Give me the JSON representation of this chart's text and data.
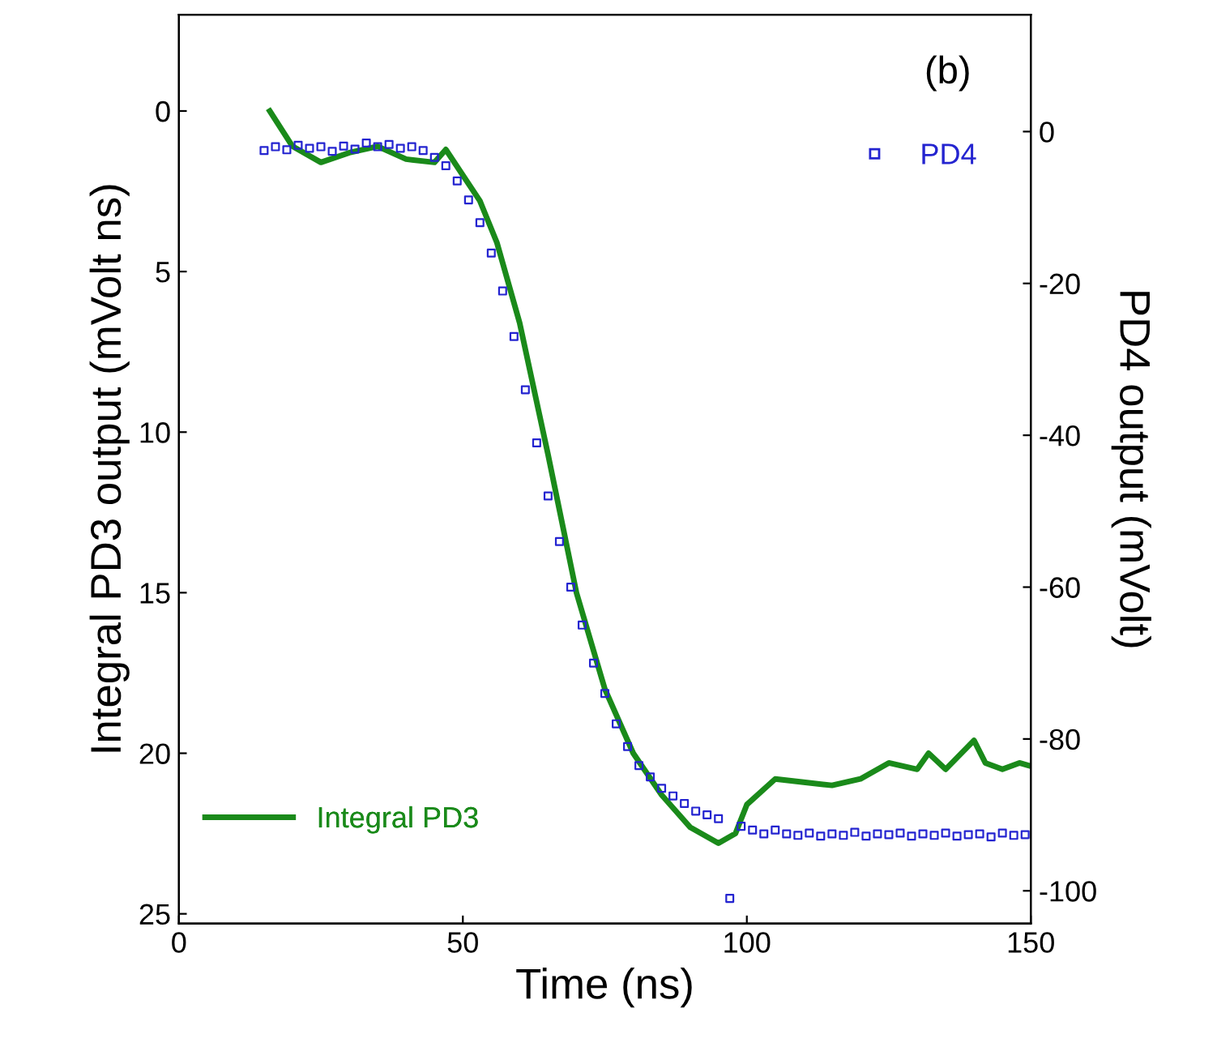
{
  "chart_data": {
    "type": "line",
    "xlabel": "Time (ns)",
    "ylabel": "Integral PD3 output (mVolt ns)",
    "y2label": "PD4 output (mVolt)",
    "xlim": [
      0,
      150
    ],
    "xticks": [
      0,
      50,
      100,
      150
    ],
    "ylim": [
      25.3,
      -3
    ],
    "yticks": [
      0,
      5,
      10,
      15,
      20,
      25
    ],
    "y2lim": [
      -104.3,
      15.4
    ],
    "y2ticks": [
      -100,
      -80,
      -60,
      -40,
      -20,
      0
    ],
    "legend": "right",
    "grid": false,
    "annotations": [
      "(b)"
    ],
    "series": [
      {
        "name": "PD4",
        "type": "scatter",
        "axis": "y2",
        "marker": "square",
        "color": "#2424d0",
        "x": [
          15,
          17,
          19,
          21,
          23,
          25,
          27,
          29,
          31,
          33,
          35,
          37,
          39,
          41,
          43,
          45,
          47,
          49,
          51,
          53,
          55,
          57,
          59,
          61,
          63,
          65,
          67,
          69,
          71,
          73,
          75,
          77,
          79,
          81,
          83,
          85,
          87,
          89,
          91,
          93,
          95,
          97,
          99,
          101,
          103,
          105,
          107,
          109,
          111,
          113,
          115,
          117,
          119,
          121,
          123,
          125,
          127,
          129,
          131,
          133,
          135,
          137,
          139,
          141,
          143,
          145,
          147,
          149
        ],
        "values": [
          -2.5,
          -2,
          -2.4,
          -1.8,
          -2.2,
          -2,
          -2.6,
          -1.9,
          -2.3,
          -1.5,
          -2,
          -1.7,
          -2.2,
          -2,
          -2.5,
          -3.4,
          -4.5,
          -6.5,
          -9,
          -12,
          -16,
          -21,
          -27,
          -34,
          -41,
          -48,
          -54,
          -60,
          -65,
          -70,
          -74,
          -78,
          -81,
          -83.5,
          -85,
          -86.5,
          -87.5,
          -88.5,
          -89.5,
          -90,
          -90.5,
          -101,
          -91.5,
          -92,
          -92.5,
          -92,
          -92.5,
          -92.7,
          -92.4,
          -92.8,
          -92.5,
          -92.7,
          -92.3,
          -92.8,
          -92.5,
          -92.6,
          -92.4,
          -92.8,
          -92.5,
          -92.7,
          -92.4,
          -92.8,
          -92.6,
          -92.5,
          -92.9,
          -92.4,
          -92.7,
          -92.6
        ]
      },
      {
        "name": "Integral PD3",
        "color": "#1a8a1a",
        "x": [
          16,
          20,
          25,
          30,
          35,
          40,
          45,
          47,
          50,
          53,
          56,
          60,
          65,
          70,
          75,
          80,
          85,
          90,
          95,
          98,
          100,
          105,
          110,
          115,
          120,
          125,
          130,
          132,
          135,
          140,
          142,
          145,
          148,
          150
        ],
        "values": [
          0,
          1.1,
          1.6,
          1.3,
          1.1,
          1.5,
          1.6,
          1.2,
          2.0,
          2.8,
          4.1,
          6.6,
          10.7,
          15,
          18,
          20,
          21.3,
          22.3,
          22.8,
          22.5,
          21.6,
          20.8,
          20.9,
          21,
          20.8,
          20.3,
          20.5,
          20,
          20.5,
          19.6,
          20.3,
          20.5,
          20.3,
          20.4
        ]
      }
    ]
  }
}
